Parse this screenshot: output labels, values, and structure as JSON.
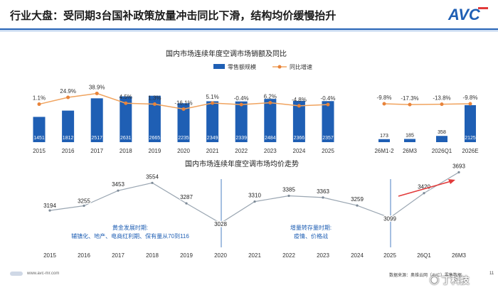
{
  "header": {
    "title": "行业大盘：受同期3台国补政策放量冲击同比下滑，结构均价缓慢抬升",
    "logo_text": "AVC"
  },
  "chart_data": [
    {
      "type": "bar",
      "title": "国内市场连续年度空调市场销额及同比",
      "legend": [
        "零售额规模",
        "同比增速"
      ],
      "categories": [
        "2015",
        "2016",
        "2017",
        "2018",
        "2019",
        "2020",
        "2021",
        "2022",
        "2023",
        "2024",
        "2025"
      ],
      "series": [
        {
          "name": "零售额规模",
          "values": [
            1451,
            1812,
            2517,
            2631,
            2665,
            2235,
            2349,
            2339,
            2484,
            2366,
            2357
          ]
        },
        {
          "name": "同比增速",
          "values": [
            1.1,
            24.9,
            38.9,
            4.5,
            1.3,
            -16.1,
            5.1,
            -0.4,
            6.2,
            -4.8,
            -0.4
          ],
          "labels": [
            "1.1%",
            "24.9%",
            "38.9%",
            "4.5%",
            "1.3%",
            "-16.1%",
            "5.1%",
            "-0.4%",
            "6.2%",
            "-4.8%",
            "-0.4%"
          ]
        }
      ],
      "ylim": [
        0,
        3000
      ],
      "legend_placement": "top-right"
    },
    {
      "type": "bar",
      "categories": [
        "26M1-2",
        "26M3",
        "2026Q1",
        "2026E"
      ],
      "series": [
        {
          "name": "零售额规模",
          "values": [
            173,
            185,
            358,
            2125
          ]
        },
        {
          "name": "同比增速",
          "values": [
            -9.8,
            -17.3,
            -13.8,
            -9.8
          ],
          "labels": [
            "-9.8%",
            "-17.3%",
            "-13.8%",
            "-9.8%"
          ]
        }
      ],
      "ylim": [
        0,
        3000
      ]
    },
    {
      "type": "line",
      "title": "国内市场连续年度空调市场均价走势",
      "x": [
        "2015",
        "2016",
        "2017",
        "2018",
        "2019",
        "2020",
        "2021",
        "2022",
        "2023",
        "2024",
        "2025",
        "26Q1",
        "26M3"
      ],
      "series": [
        {
          "values": [
            3194,
            3255,
            3453,
            3554,
            3287,
            3028,
            3310,
            3385,
            3363,
            3259,
            3099,
            3420,
            3693
          ]
        }
      ],
      "ylim": [
        2800,
        3800
      ],
      "annotations": [
        {
          "text": "辅镇化、地产、电商红利期、保有量从70到116",
          "prefix": "黄金发展时期:"
        },
        {
          "text": "疫情、价格战",
          "prefix": "增量转存量时期:"
        }
      ]
    }
  ],
  "footer": {
    "site": "www.avc-mr.com",
    "source": "数据来源：奥维云网（AVC）零售数据",
    "page": "11",
    "watermark": "丁科技"
  },
  "colors": {
    "bar": "#1f5fb4",
    "line": "#f0a35e",
    "marker": "#e8833a",
    "header_rule": "#1f5fb4",
    "trend_arrow": "#e23a3a"
  },
  "icons": [
    "avc-logo-icon",
    "arrow-up-right-icon",
    "weibo-icon"
  ]
}
